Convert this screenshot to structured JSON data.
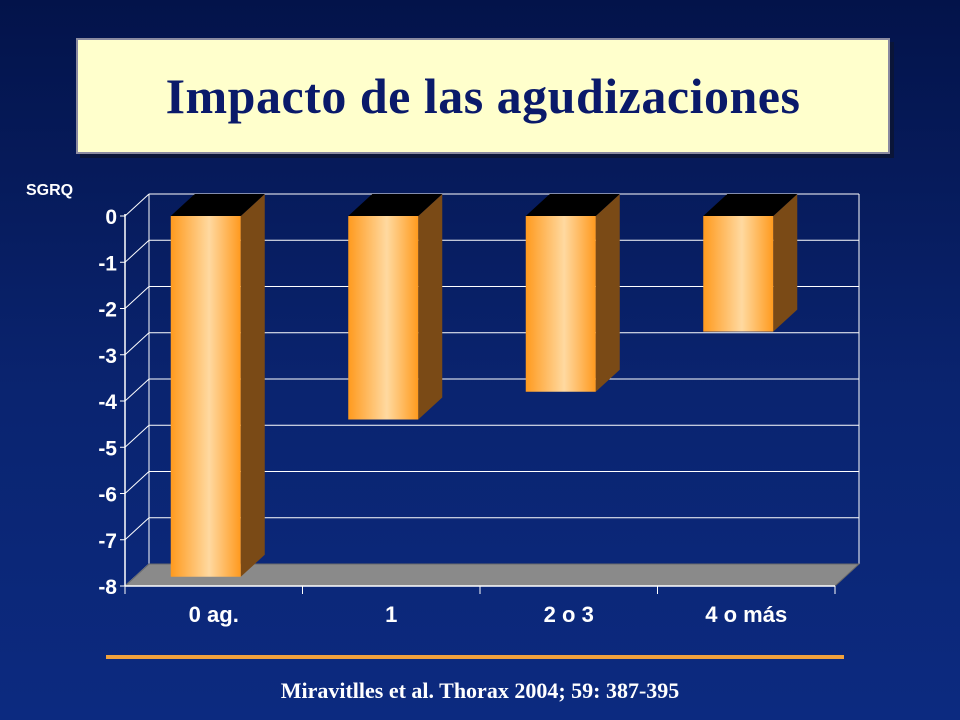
{
  "slide": {
    "title": "Impacto de las agudizaciones",
    "citation": "Miravitlles et al. Thorax 2004; 59: 387-395"
  },
  "colors": {
    "bar_front": "#ff9a1e",
    "bar_highlight": "#ffd9a0",
    "bar_side": "#7a4a16",
    "bar_top": "#000000",
    "floor": "#8a8a8a",
    "axis_text": "#ffffff",
    "rule": "#f2a23c"
  },
  "chart_data": {
    "type": "bar",
    "style": "3d-column",
    "categories": [
      "0 ag.",
      "1",
      "2 o 3",
      "4 o más"
    ],
    "values": [
      -7.8,
      -4.4,
      -3.8,
      -2.5
    ],
    "ylabel": "SGRQ",
    "ylim": [
      -8,
      0
    ],
    "yticks": [
      "0",
      "-1",
      "-2",
      "-3",
      "-4",
      "-5",
      "-6",
      "-7",
      "-8"
    ],
    "grid": true,
    "legend": "none"
  }
}
